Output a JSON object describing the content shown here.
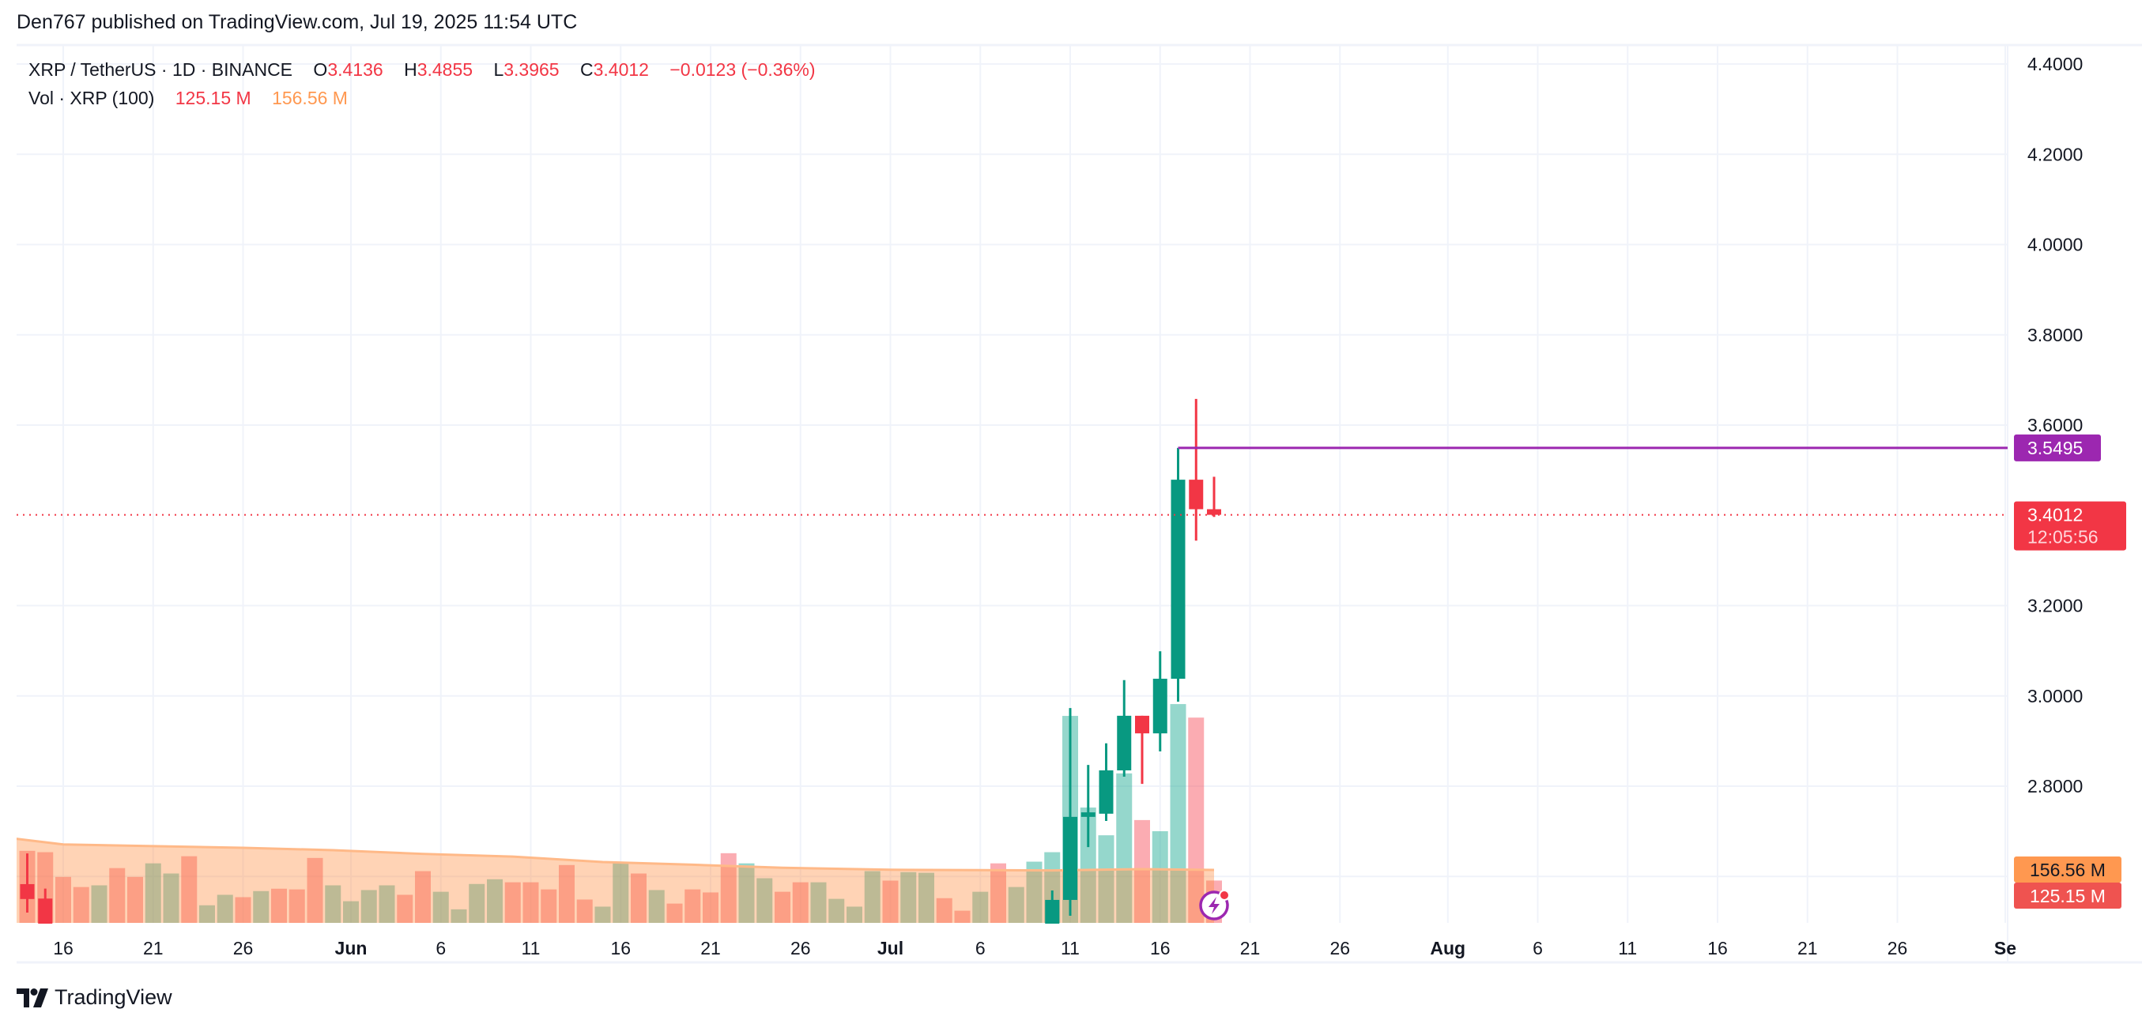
{
  "header": {
    "published": "Den767 published on TradingView.com, Jul 19, 2025 11:54 UTC"
  },
  "legend": {
    "symbol": "XRP / TetherUS · 1D · BINANCE",
    "o_label": "O",
    "o": "3.4136",
    "h_label": "H",
    "h": "3.4855",
    "l_label": "L",
    "l": "3.3965",
    "c_label": "C",
    "c": "3.4012",
    "change": "−0.0123 (−0.36%)",
    "vol_label": "Vol · XRP (100)",
    "vol": "125.15 M",
    "vol_ma": "156.56 M"
  },
  "logo": {
    "text": "TradingView"
  },
  "colors": {
    "up": "#089981",
    "down": "#f23645",
    "ma": "#ff9850",
    "highline": "#9c27b0"
  },
  "chart_data": {
    "type": "candlestick",
    "price_ticks": [
      "4.4000",
      "4.2000",
      "4.0000",
      "3.8000",
      "3.6000",
      "3.2000",
      "3.0000",
      "2.8000"
    ],
    "time_ticks": [
      {
        "date": "2025-05-16",
        "label": "16"
      },
      {
        "date": "2025-05-21",
        "label": "21"
      },
      {
        "date": "2025-05-26",
        "label": "26"
      },
      {
        "date": "2025-06-01",
        "label": "Jun",
        "bold": true
      },
      {
        "date": "2025-06-06",
        "label": "6"
      },
      {
        "date": "2025-06-11",
        "label": "11"
      },
      {
        "date": "2025-06-16",
        "label": "16"
      },
      {
        "date": "2025-06-21",
        "label": "21"
      },
      {
        "date": "2025-06-26",
        "label": "26"
      },
      {
        "date": "2025-07-01",
        "label": "Jul",
        "bold": true
      },
      {
        "date": "2025-07-06",
        "label": "6"
      },
      {
        "date": "2025-07-11",
        "label": "11"
      },
      {
        "date": "2025-07-16",
        "label": "16"
      },
      {
        "date": "2025-07-21",
        "label": "21"
      },
      {
        "date": "2025-07-26",
        "label": "26"
      },
      {
        "date": "2025-08-01",
        "label": "Aug",
        "bold": true
      },
      {
        "date": "2025-08-06",
        "label": "6"
      },
      {
        "date": "2025-08-11",
        "label": "11"
      },
      {
        "date": "2025-08-16",
        "label": "16"
      },
      {
        "date": "2025-08-21",
        "label": "21"
      },
      {
        "date": "2025-08-26",
        "label": "26"
      },
      {
        "date": "2025-09-01",
        "label": "Se",
        "bold": true
      }
    ],
    "candles": [
      {
        "date": "2025-05-14",
        "o": 2.583,
        "h": 2.651,
        "l": 2.52,
        "c": 2.55
      },
      {
        "date": "2025-05-15",
        "o": 2.551,
        "h": 2.573,
        "l": 2.44,
        "c": 2.48
      },
      {
        "date": "2025-07-10",
        "o": 2.47,
        "h": 2.569,
        "l": 2.44,
        "c": 2.548
      },
      {
        "date": "2025-07-11",
        "o": 2.548,
        "h": 2.973,
        "l": 2.513,
        "c": 2.732
      },
      {
        "date": "2025-07-12",
        "o": 2.732,
        "h": 2.847,
        "l": 2.665,
        "c": 2.742
      },
      {
        "date": "2025-07-13",
        "o": 2.739,
        "h": 2.895,
        "l": 2.723,
        "c": 2.835
      },
      {
        "date": "2025-07-14",
        "o": 2.835,
        "h": 3.035,
        "l": 2.821,
        "c": 2.956
      },
      {
        "date": "2025-07-15",
        "o": 2.956,
        "h": 2.956,
        "l": 2.805,
        "c": 2.917
      },
      {
        "date": "2025-07-16",
        "o": 2.917,
        "h": 3.099,
        "l": 2.877,
        "c": 3.038
      },
      {
        "date": "2025-07-17",
        "o": 3.038,
        "h": 3.5495,
        "l": 2.987,
        "c": 3.479
      },
      {
        "date": "2025-07-18",
        "o": 3.479,
        "h": 3.658,
        "l": 3.344,
        "c": 3.4136
      },
      {
        "date": "2025-07-19",
        "o": 3.4136,
        "h": 3.4855,
        "l": 3.3965,
        "c": 3.4012
      }
    ],
    "volume_start": "2025-05-14",
    "volume_millions": [
      {
        "v": 213,
        "up": false
      },
      {
        "v": 209,
        "up": false
      },
      {
        "v": 136,
        "up": false
      },
      {
        "v": 106,
        "up": false
      },
      {
        "v": 111,
        "up": true
      },
      {
        "v": 162,
        "up": false
      },
      {
        "v": 136,
        "up": false
      },
      {
        "v": 176,
        "up": true
      },
      {
        "v": 146,
        "up": true
      },
      {
        "v": 197,
        "up": false
      },
      {
        "v": 52,
        "up": true
      },
      {
        "v": 83,
        "up": true
      },
      {
        "v": 76,
        "up": false
      },
      {
        "v": 94,
        "up": true
      },
      {
        "v": 101,
        "up": false
      },
      {
        "v": 99,
        "up": false
      },
      {
        "v": 192,
        "up": false
      },
      {
        "v": 111,
        "up": true
      },
      {
        "v": 64,
        "up": true
      },
      {
        "v": 97,
        "up": true
      },
      {
        "v": 111,
        "up": true
      },
      {
        "v": 83,
        "up": false
      },
      {
        "v": 153,
        "up": false
      },
      {
        "v": 92,
        "up": true
      },
      {
        "v": 40,
        "up": true
      },
      {
        "v": 115,
        "up": true
      },
      {
        "v": 129,
        "up": true
      },
      {
        "v": 120,
        "up": false
      },
      {
        "v": 120,
        "up": false
      },
      {
        "v": 99,
        "up": false
      },
      {
        "v": 171,
        "up": false
      },
      {
        "v": 69,
        "up": false
      },
      {
        "v": 48,
        "up": true
      },
      {
        "v": 181,
        "up": true
      },
      {
        "v": 146,
        "up": false
      },
      {
        "v": 97,
        "up": true
      },
      {
        "v": 57,
        "up": false
      },
      {
        "v": 99,
        "up": false
      },
      {
        "v": 90,
        "up": false
      },
      {
        "v": 206,
        "up": false
      },
      {
        "v": 176,
        "up": true
      },
      {
        "v": 132,
        "up": true
      },
      {
        "v": 92,
        "up": false
      },
      {
        "v": 120,
        "up": false
      },
      {
        "v": 120,
        "up": true
      },
      {
        "v": 71,
        "up": true
      },
      {
        "v": 48,
        "up": true
      },
      {
        "v": 153,
        "up": true
      },
      {
        "v": 125,
        "up": false
      },
      {
        "v": 150,
        "up": true
      },
      {
        "v": 148,
        "up": true
      },
      {
        "v": 73,
        "up": false
      },
      {
        "v": 36,
        "up": false
      },
      {
        "v": 92,
        "up": true
      },
      {
        "v": 176,
        "up": false
      },
      {
        "v": 106,
        "up": true
      },
      {
        "v": 181,
        "up": true
      },
      {
        "v": 209,
        "up": true
      },
      {
        "v": 612,
        "up": true
      },
      {
        "v": 341,
        "up": true
      },
      {
        "v": 259,
        "up": true
      },
      {
        "v": 442,
        "up": true
      },
      {
        "v": 304,
        "up": false
      },
      {
        "v": 271,
        "up": true
      },
      {
        "v": 647,
        "up": true
      },
      {
        "v": 607,
        "up": false
      },
      {
        "v": 125.15,
        "up": false
      }
    ],
    "volume_ma_100": [
      {
        "date": "2025-05-13",
        "v": 251
      },
      {
        "date": "2025-05-16",
        "v": 232
      },
      {
        "date": "2025-05-21",
        "v": 227
      },
      {
        "date": "2025-05-26",
        "v": 222
      },
      {
        "date": "2025-05-31",
        "v": 215
      },
      {
        "date": "2025-06-05",
        "v": 204
      },
      {
        "date": "2025-06-10",
        "v": 196
      },
      {
        "date": "2025-06-15",
        "v": 180
      },
      {
        "date": "2025-06-20",
        "v": 172
      },
      {
        "date": "2025-06-25",
        "v": 163
      },
      {
        "date": "2025-07-01",
        "v": 157
      },
      {
        "date": "2025-07-10",
        "v": 155
      },
      {
        "date": "2025-07-15",
        "v": 159
      },
      {
        "date": "2025-07-19",
        "v": 156.56
      }
    ],
    "high_line": {
      "from": "2025-07-17",
      "price": 3.5495,
      "label": "3.5495"
    },
    "last_price": {
      "price": 3.4012,
      "label": "3.4012",
      "countdown": "12:05:56"
    },
    "volume_labels": {
      "ma": "156.56 M",
      "vol": "125.15 M"
    }
  }
}
